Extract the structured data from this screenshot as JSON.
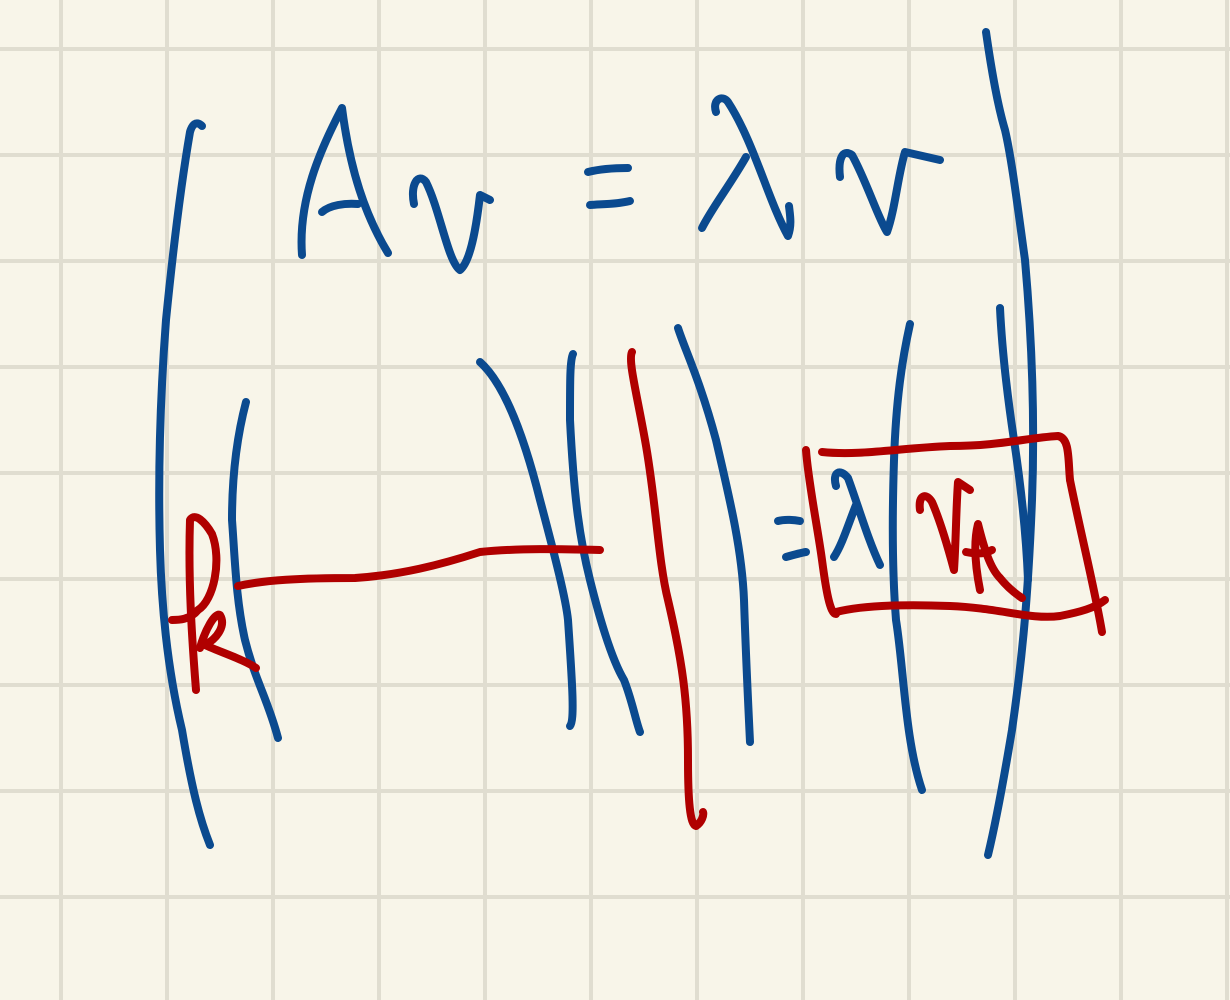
{
  "page": {
    "background_color": "#f8f5e9",
    "grid_color": "#e0ddd0"
  },
  "ink": {
    "blue": "#0b4a8f",
    "red": "#b00000"
  }
}
